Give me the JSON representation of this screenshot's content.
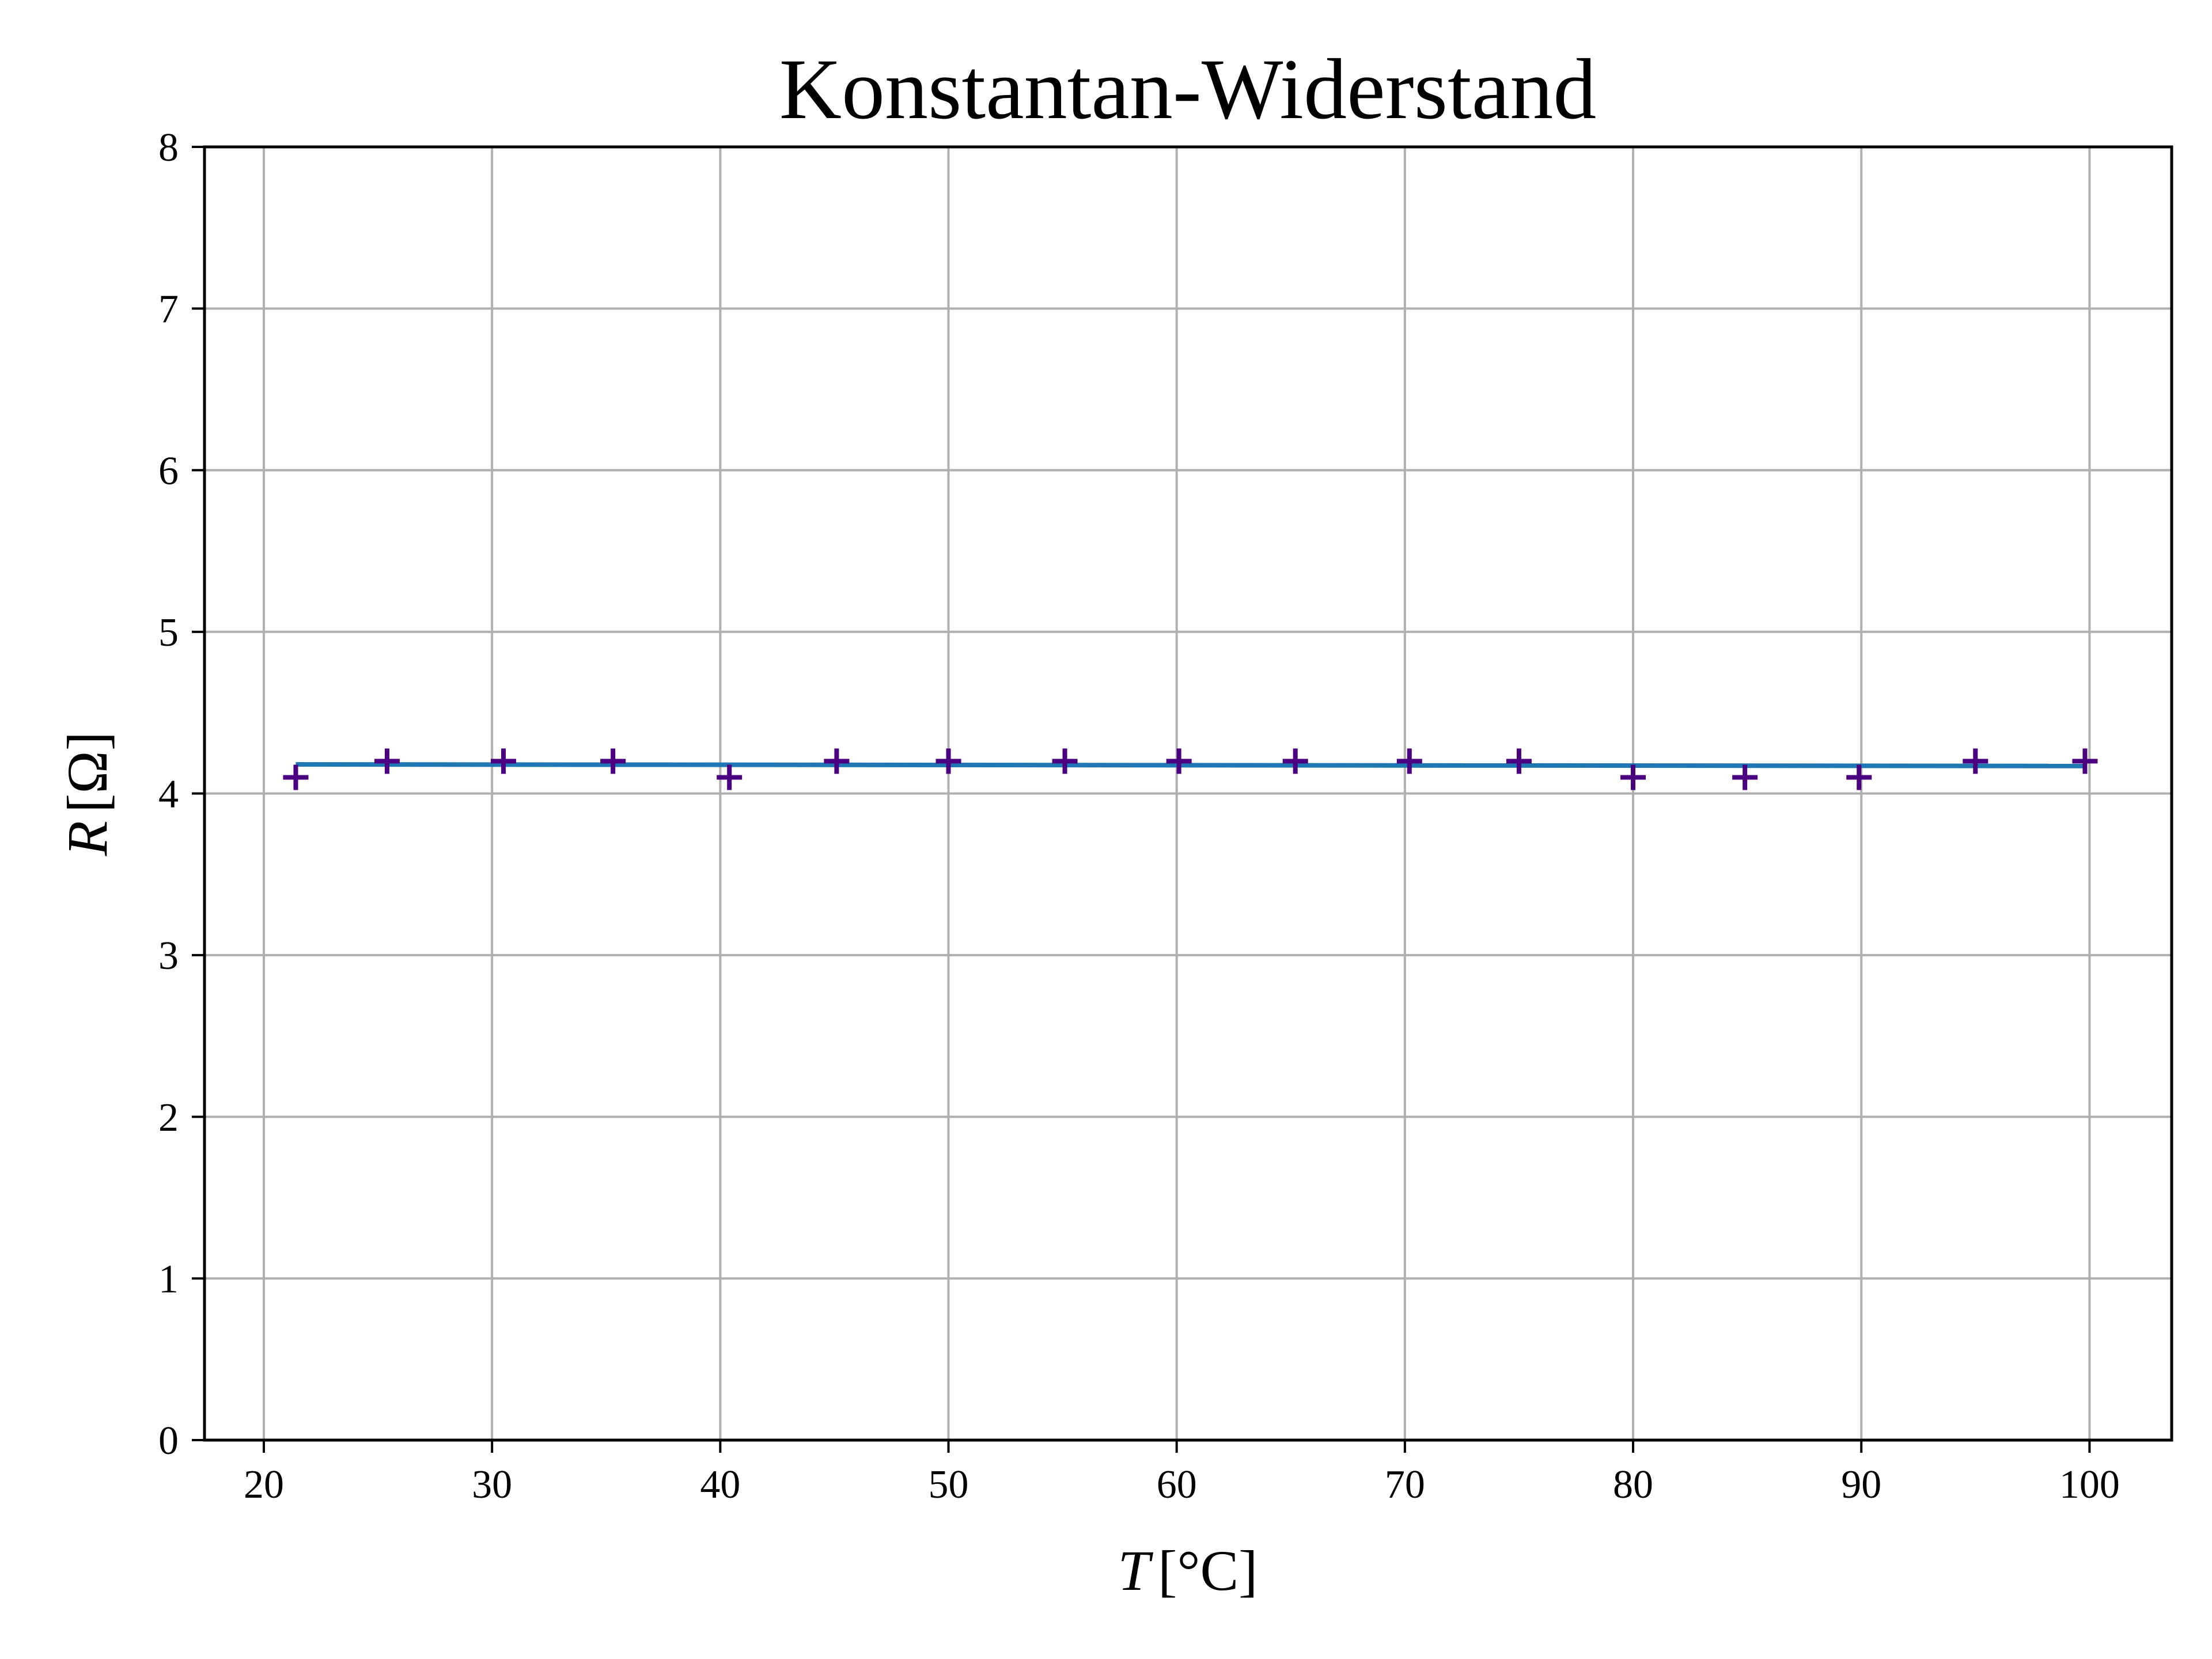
{
  "chart_data": {
    "type": "scatter",
    "title": "Konstantan-Widerstand",
    "xlabel": {
      "symbol": "T",
      "unit": "[°C]"
    },
    "ylabel": {
      "symbol": "R",
      "unit": "[Ω]"
    },
    "xlim": [
      17.4,
      103.6
    ],
    "ylim": [
      0,
      8
    ],
    "xticks": [
      20,
      30,
      40,
      50,
      60,
      70,
      80,
      90,
      100
    ],
    "yticks": [
      0,
      1,
      2,
      3,
      4,
      5,
      6,
      7,
      8
    ],
    "grid": true,
    "series": [
      {
        "kind": "points",
        "marker": "+",
        "color": "#4b0082",
        "x": [
          21.4,
          25.4,
          30.5,
          35.3,
          40.4,
          45.1,
          50.0,
          55.1,
          60.1,
          65.2,
          70.2,
          75.0,
          80.0,
          84.9,
          89.9,
          95.0,
          99.8
        ],
        "y": [
          4.1,
          4.2,
          4.2,
          4.2,
          4.1,
          4.2,
          4.2,
          4.2,
          4.2,
          4.2,
          4.2,
          4.2,
          4.1,
          4.1,
          4.1,
          4.2,
          4.2
        ]
      },
      {
        "kind": "fit-line",
        "color": "#1f77b4",
        "x": [
          21.4,
          99.8
        ],
        "y": [
          4.18,
          4.17
        ]
      }
    ]
  }
}
